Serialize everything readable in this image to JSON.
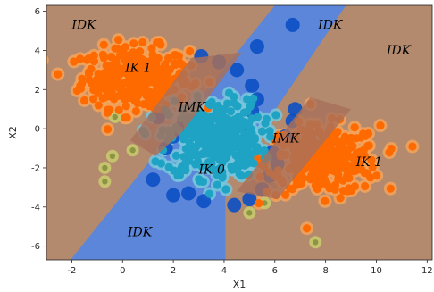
{
  "chart_data": {
    "type": "scatter",
    "title": "",
    "xlabel": "X1",
    "ylabel": "X2",
    "xlim": [
      -3,
      12.2
    ],
    "ylim": [
      -6.7,
      6.3
    ],
    "x_ticks": [
      -2,
      0,
      2,
      4,
      6,
      8,
      10,
      12
    ],
    "y_ticks": [
      -6,
      -4,
      -2,
      0,
      2,
      4,
      6
    ],
    "grid": false,
    "legend": "none",
    "colors": {
      "idk_background": "#b38a6e",
      "diagonal_band": "#5b86d9",
      "class1_points": "#ff6a00",
      "class1_halo": "#f5a25a",
      "class0_points": "#1fa3c4",
      "class0_halo": "#78c6dc",
      "boundary_points": "#0b4fc4",
      "overlap_region": "#a8705a",
      "outlier_points": "#c9c86e"
    },
    "band": {
      "description_points": [
        [
          -2.05,
          -6.7
        ],
        [
          6.0,
          6.3
        ],
        [
          8.8,
          6.3
        ],
        [
          4.05,
          -2.8
        ],
        [
          4.05,
          -6.7
        ]
      ]
    },
    "clusters": [
      {
        "class": "1",
        "center": [
          0.5,
          2.6
        ],
        "spread": [
          1.7,
          1.25
        ],
        "count": 320
      },
      {
        "class": "1",
        "center": [
          7.9,
          -1.6
        ],
        "spread": [
          1.8,
          1.4
        ],
        "count": 320
      },
      {
        "class": "0",
        "center": [
          3.6,
          -0.5
        ],
        "spread": [
          1.5,
          1.6
        ],
        "count": 360
      }
    ],
    "boundary_points": [
      [
        3.1,
        3.7
      ],
      [
        3.8,
        3.4
      ],
      [
        4.5,
        3.0
      ],
      [
        5.1,
        2.2
      ],
      [
        5.3,
        1.5
      ],
      [
        5.1,
        0.9
      ],
      [
        4.7,
        0.2
      ],
      [
        4.3,
        -0.3
      ],
      [
        2.4,
        0.2
      ],
      [
        2.0,
        -0.4
      ],
      [
        1.7,
        -1.0
      ],
      [
        1.4,
        0.6
      ],
      [
        5.9,
        -1.2
      ],
      [
        6.1,
        -1.8
      ],
      [
        6.4,
        -0.4
      ],
      [
        6.7,
        0.4
      ],
      [
        6.8,
        1.0
      ],
      [
        5.8,
        -2.4
      ],
      [
        5.5,
        -3.1
      ],
      [
        5.0,
        -3.6
      ],
      [
        4.4,
        -3.9
      ],
      [
        3.2,
        -3.7
      ],
      [
        2.6,
        -3.3
      ],
      [
        2.0,
        -3.4
      ],
      [
        1.2,
        -2.6
      ],
      [
        5.3,
        4.2
      ],
      [
        6.7,
        5.3
      ]
    ],
    "outlier_points": [
      [
        -0.7,
        -2.0
      ],
      [
        -0.7,
        -2.7
      ],
      [
        -0.4,
        -1.4
      ],
      [
        -0.3,
        0.6
      ],
      [
        0.4,
        -1.1
      ],
      [
        5.6,
        -3.8
      ],
      [
        5.0,
        -4.3
      ],
      [
        7.6,
        -5.8
      ]
    ],
    "region_labels": [
      {
        "text": "IDK",
        "x": -2.0,
        "y": 5.1
      },
      {
        "text": "IK 1",
        "x": 0.1,
        "y": 2.9
      },
      {
        "text": "IMK",
        "x": 2.2,
        "y": 0.9
      },
      {
        "text": "IDK",
        "x": 7.7,
        "y": 5.1
      },
      {
        "text": "IDK",
        "x": 10.4,
        "y": 3.8
      },
      {
        "text": "IMK",
        "x": 5.9,
        "y": -0.7
      },
      {
        "text": "IK 0",
        "x": 3.0,
        "y": -2.3
      },
      {
        "text": "IK 1",
        "x": 9.2,
        "y": -1.9
      },
      {
        "text": "IDK",
        "x": 0.2,
        "y": -5.5
      }
    ]
  }
}
